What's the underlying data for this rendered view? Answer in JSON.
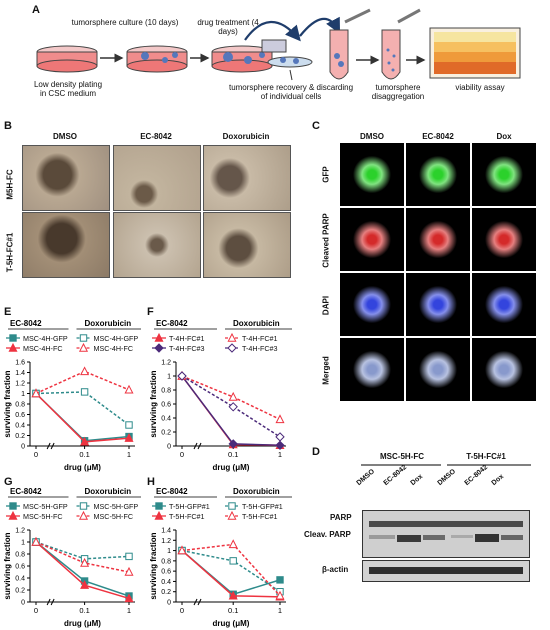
{
  "panel_letters": {
    "A": "A",
    "B": "B",
    "C": "C",
    "D": "D",
    "E": "E",
    "F": "F",
    "G": "G",
    "H": "H"
  },
  "workflow": {
    "step1_label": "Low density plating in CSC medium",
    "step2_label": "tumorsphere culture (10 days)",
    "step3_label": "drug treatment (4 days)",
    "step4_label": "tumorsphere recovery & discarding of individual cells",
    "step5_label": "tumorsphere disaggregation",
    "step6_label": "viability assay"
  },
  "panel_b": {
    "col_headers": [
      "DMSO",
      "EC-8042",
      "Doxorubicin"
    ],
    "row_labels": [
      "M5H-FC",
      "T-5H-FC#1"
    ]
  },
  "panel_c": {
    "col_headers": [
      "DMSO",
      "EC-8042",
      "Dox"
    ],
    "row_labels": [
      "GFP",
      "Cleaved PARP",
      "DAPI",
      "Merged"
    ],
    "colors": {
      "GFP": "#2bd12b",
      "Cleaved PARP": "#d42a2a",
      "DAPI": "#3344dd",
      "Merged": "#8899cc"
    }
  },
  "panel_d": {
    "group_labels": [
      "MSC-5H-FC",
      "T-5H-FC#1"
    ],
    "lane_labels": [
      "DMSO",
      "EC-8042",
      "Dox",
      "DMSO",
      "EC-8042",
      "Dox"
    ],
    "band_labels": [
      "PARP",
      "Cleav. PARP",
      "β-actin"
    ]
  },
  "chart_data": [
    {
      "panel": "E",
      "type": "line",
      "legend_headers": [
        "EC-8042",
        "Doxorubicin"
      ],
      "x": [
        0,
        0.1,
        1
      ],
      "x_ticks": [
        "0",
        "0.1",
        "1"
      ],
      "xlabel": "drug (μM)",
      "ylabel": "surviving fraction",
      "ylim": [
        0,
        1.6
      ],
      "y_ticks": [
        "0",
        "0.2",
        "0.4",
        "0.6",
        "0.8",
        "1",
        "1.2",
        "1.4",
        "1.6"
      ],
      "series": [
        {
          "name": "MSC-4H-GFP",
          "drug": "EC-8042",
          "values": [
            1,
            0.1,
            0.18
          ],
          "color": "#2e8b8b",
          "dash": false,
          "marker": "square",
          "fill": true
        },
        {
          "name": "MSC-4H-FC",
          "drug": "EC-8042",
          "values": [
            1,
            0.08,
            0.15
          ],
          "color": "#ee3340",
          "dash": false,
          "marker": "triangle",
          "fill": true
        },
        {
          "name": "MSC-4H-GFP",
          "drug": "Doxorubicin",
          "values": [
            1,
            1.03,
            0.4
          ],
          "color": "#2e8b8b",
          "dash": true,
          "marker": "square",
          "fill": false
        },
        {
          "name": "MSC-4H-FC",
          "drug": "Doxorubicin",
          "values": [
            1,
            1.42,
            1.07
          ],
          "color": "#ee3340",
          "dash": true,
          "marker": "triangle",
          "fill": false
        }
      ]
    },
    {
      "panel": "F",
      "type": "line",
      "legend_headers": [
        "EC-8042",
        "Doxorubicin"
      ],
      "x": [
        0,
        0.1,
        1
      ],
      "x_ticks": [
        "0",
        "0.1",
        "1"
      ],
      "xlabel": "drug (μM)",
      "ylabel": "surviving fraction",
      "ylim": [
        0,
        1.2
      ],
      "y_ticks": [
        "0",
        "0.2",
        "0.4",
        "0.6",
        "0.8",
        "1",
        "1.2"
      ],
      "series": [
        {
          "name": "T-4H-FC#1",
          "drug": "EC-8042",
          "values": [
            1,
            0.02,
            0.01
          ],
          "color": "#ee3340",
          "dash": false,
          "marker": "triangle",
          "fill": true
        },
        {
          "name": "T-4H-FC#3",
          "drug": "EC-8042",
          "values": [
            1,
            0.03,
            0.01
          ],
          "color": "#4b2a7a",
          "dash": false,
          "marker": "diamond",
          "fill": true
        },
        {
          "name": "T-4H-FC#1",
          "drug": "Doxorubicin",
          "values": [
            1,
            0.7,
            0.38
          ],
          "color": "#ee3340",
          "dash": true,
          "marker": "triangle",
          "fill": false
        },
        {
          "name": "T-4H-FC#3",
          "drug": "Doxorubicin",
          "values": [
            1,
            0.56,
            0.13
          ],
          "color": "#4b2a7a",
          "dash": true,
          "marker": "diamond",
          "fill": false
        }
      ]
    },
    {
      "panel": "G",
      "type": "line",
      "legend_headers": [
        "EC-8042",
        "Doxorubicin"
      ],
      "x": [
        0,
        0.1,
        1
      ],
      "x_ticks": [
        "0",
        "0.1",
        "1"
      ],
      "xlabel": "drug (μM)",
      "ylabel": "surviving fraction",
      "ylim": [
        0,
        1.2
      ],
      "y_ticks": [
        "0",
        "0.2",
        "0.4",
        "0.6",
        "0.8",
        "1",
        "1.2"
      ],
      "series": [
        {
          "name": "MSC-5H-GFP",
          "drug": "EC-8042",
          "values": [
            1,
            0.35,
            0.1
          ],
          "color": "#2e8b8b",
          "dash": false,
          "marker": "square",
          "fill": true
        },
        {
          "name": "MSC-5H-FC",
          "drug": "EC-8042",
          "values": [
            1,
            0.28,
            0.06
          ],
          "color": "#ee3340",
          "dash": false,
          "marker": "triangle",
          "fill": true
        },
        {
          "name": "MSC-5H-GFP",
          "drug": "Doxorubicin",
          "values": [
            1,
            0.72,
            0.76
          ],
          "color": "#2e8b8b",
          "dash": true,
          "marker": "square",
          "fill": false
        },
        {
          "name": "MSC-5H-FC",
          "drug": "Doxorubicin",
          "values": [
            1,
            0.65,
            0.5
          ],
          "color": "#ee3340",
          "dash": true,
          "marker": "triangle",
          "fill": false
        }
      ]
    },
    {
      "panel": "H",
      "type": "line",
      "legend_headers": [
        "EC-8042",
        "Doxorubicin"
      ],
      "x": [
        0,
        0.1,
        1
      ],
      "x_ticks": [
        "0",
        "0.1",
        "1"
      ],
      "xlabel": "drug (μM)",
      "ylabel": "surviving fraction",
      "ylim": [
        0,
        1.4
      ],
      "y_ticks": [
        "0",
        "0.2",
        "0.4",
        "0.6",
        "0.8",
        "1",
        "1.2",
        "1.4"
      ],
      "series": [
        {
          "name": "T-5H-GFP#1",
          "drug": "EC-8042",
          "values": [
            1,
            0.15,
            0.43
          ],
          "color": "#2e8b8b",
          "dash": false,
          "marker": "square",
          "fill": true
        },
        {
          "name": "T-5H-FC#1",
          "drug": "EC-8042",
          "values": [
            1,
            0.12,
            0.1
          ],
          "color": "#ee3340",
          "dash": false,
          "marker": "triangle",
          "fill": true
        },
        {
          "name": "T-5H-GFP#1",
          "drug": "Doxorubicin",
          "values": [
            1,
            0.8,
            0.2
          ],
          "color": "#2e8b8b",
          "dash": true,
          "marker": "square",
          "fill": false
        },
        {
          "name": "T-5H-FC#1",
          "drug": "Doxorubicin",
          "values": [
            1,
            1.12,
            0.12
          ],
          "color": "#ee3340",
          "dash": true,
          "marker": "triangle",
          "fill": false
        }
      ]
    }
  ]
}
